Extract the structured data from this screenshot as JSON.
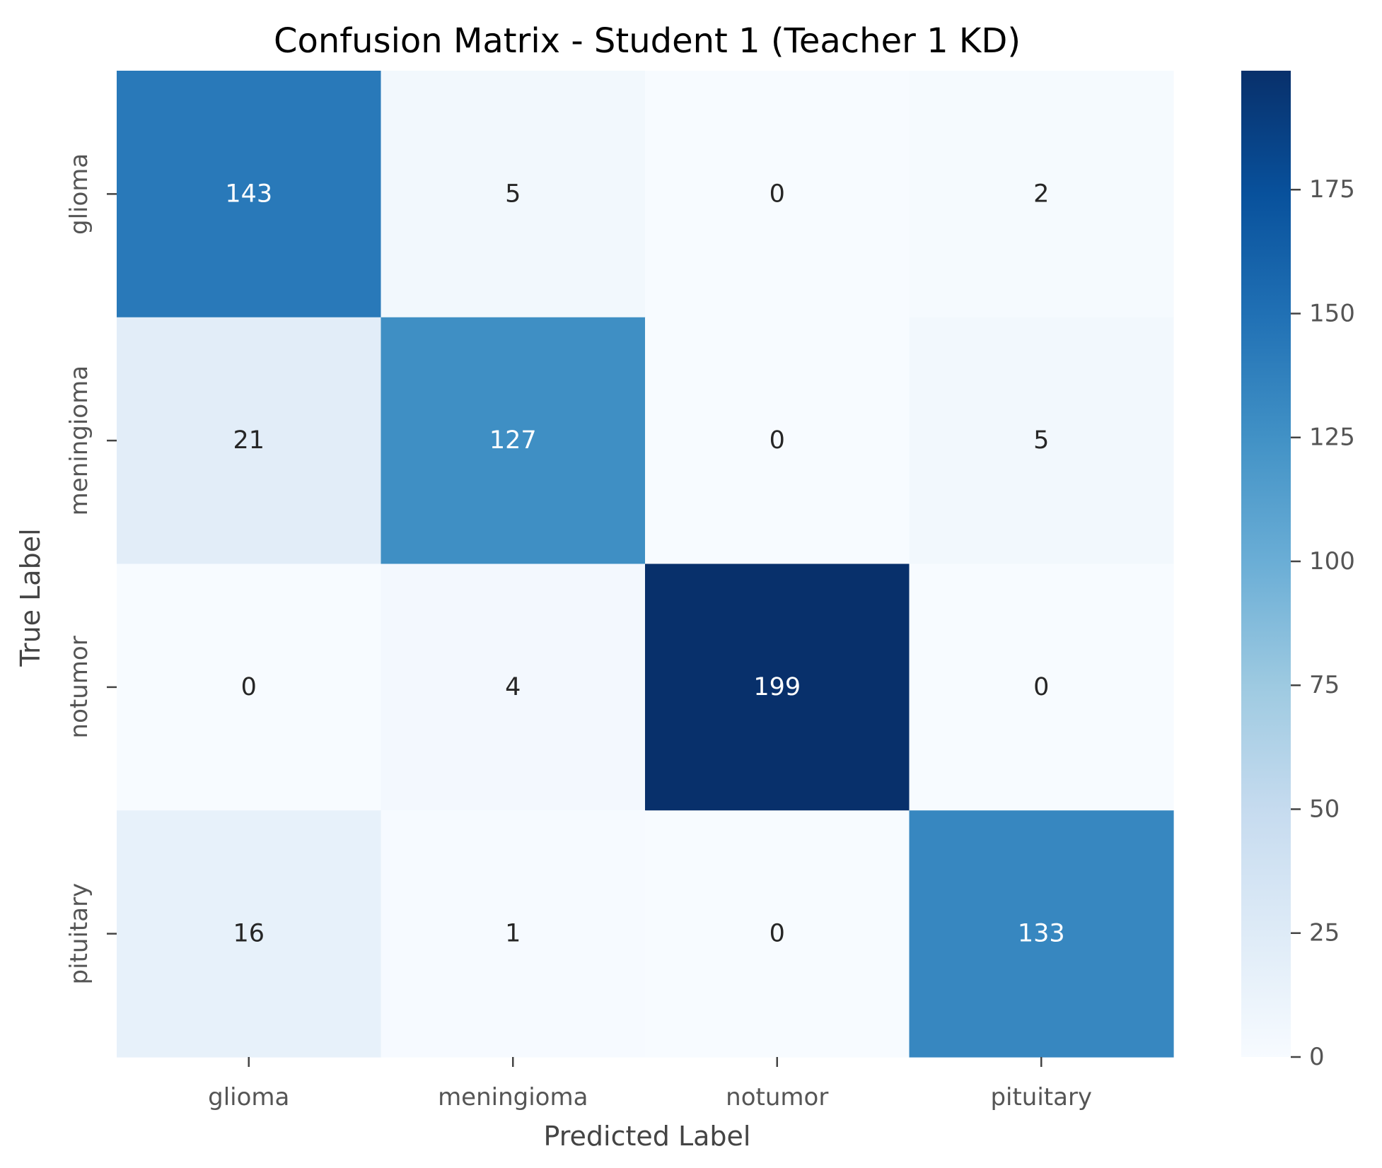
{
  "chart_data": {
    "type": "heatmap",
    "title": "Confusion Matrix - Student 1 (Teacher 1 KD)",
    "xlabel": "Predicted Label",
    "ylabel": "True Label",
    "x_categories": [
      "glioma",
      "meningioma",
      "notumor",
      "pituitary"
    ],
    "y_categories": [
      "glioma",
      "meningioma",
      "notumor",
      "pituitary"
    ],
    "values": [
      [
        143,
        5,
        0,
        2
      ],
      [
        21,
        127,
        0,
        5
      ],
      [
        0,
        4,
        199,
        0
      ],
      [
        16,
        1,
        0,
        133
      ]
    ],
    "colormap": "Blues",
    "colorbar": {
      "min": 0,
      "max": 199,
      "ticks": [
        0,
        25,
        50,
        75,
        100,
        125,
        150,
        175
      ],
      "tick_labels": [
        "0",
        "25",
        "50",
        "75",
        "100",
        "125",
        "150",
        "175"
      ]
    },
    "annotation_colors": {
      "on_dark": "#ffffff",
      "on_light": "#262626"
    }
  }
}
